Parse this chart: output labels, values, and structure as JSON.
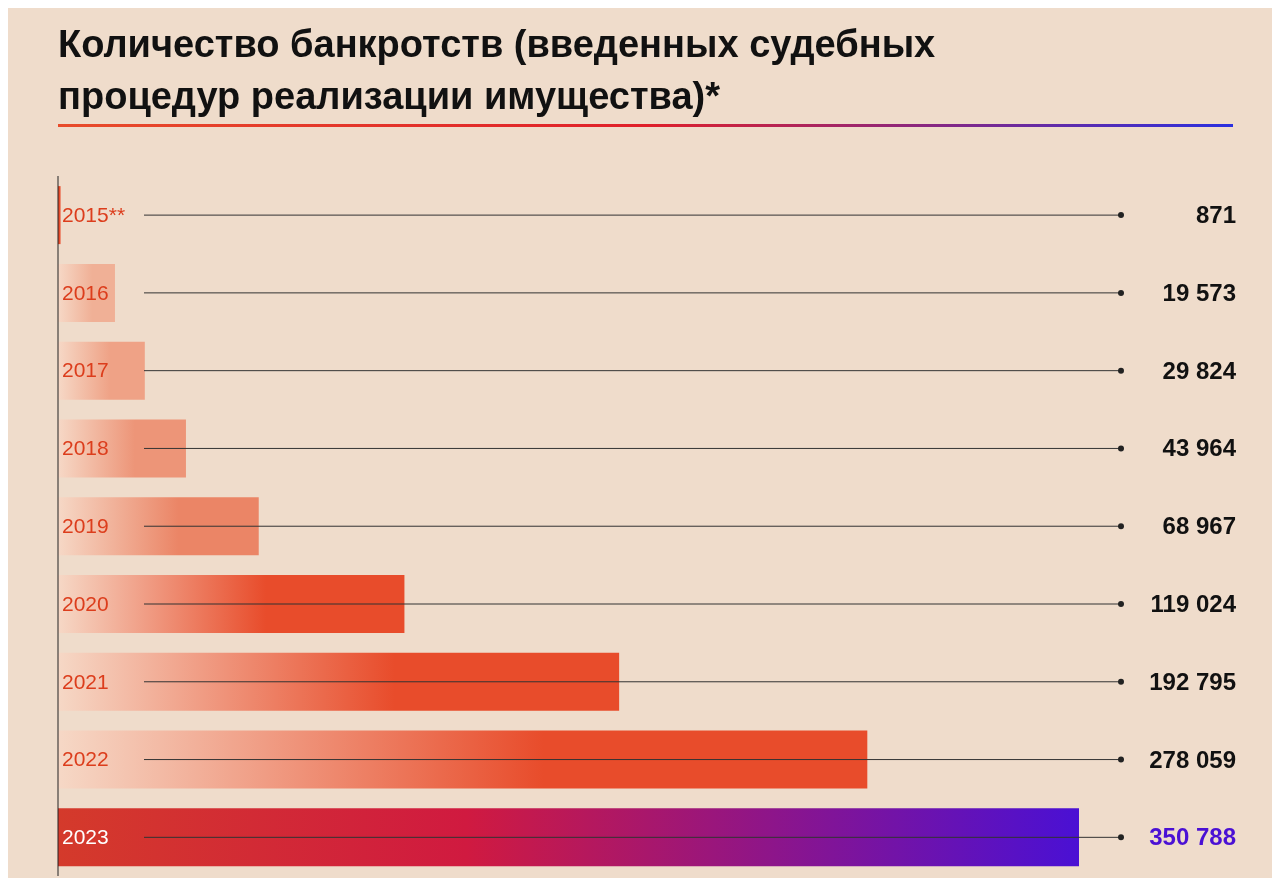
{
  "chart_data": {
    "type": "bar",
    "orientation": "horizontal",
    "title": "Количество банкротств (введенных судебных процедур реализации имущества)*",
    "categories": [
      "2015**",
      "2016",
      "2017",
      "2018",
      "2019",
      "2020",
      "2021",
      "2022",
      "2023"
    ],
    "values": [
      871,
      19573,
      29824,
      43964,
      68967,
      119024,
      192795,
      278059,
      350788
    ],
    "colors": [
      "#e84c2b",
      "#f0b096",
      "#efa286",
      "#ed9578",
      "#eb8566",
      "#e84c2b",
      "#e84c2b",
      "#e84c2b",
      "#4a10d4"
    ],
    "value_labels": [
      "871",
      "19 573",
      "29 824",
      "43 964",
      "68 967",
      "119 024",
      "192 795",
      "278 059",
      "350 788"
    ],
    "tick_labels": "y"
  }
}
